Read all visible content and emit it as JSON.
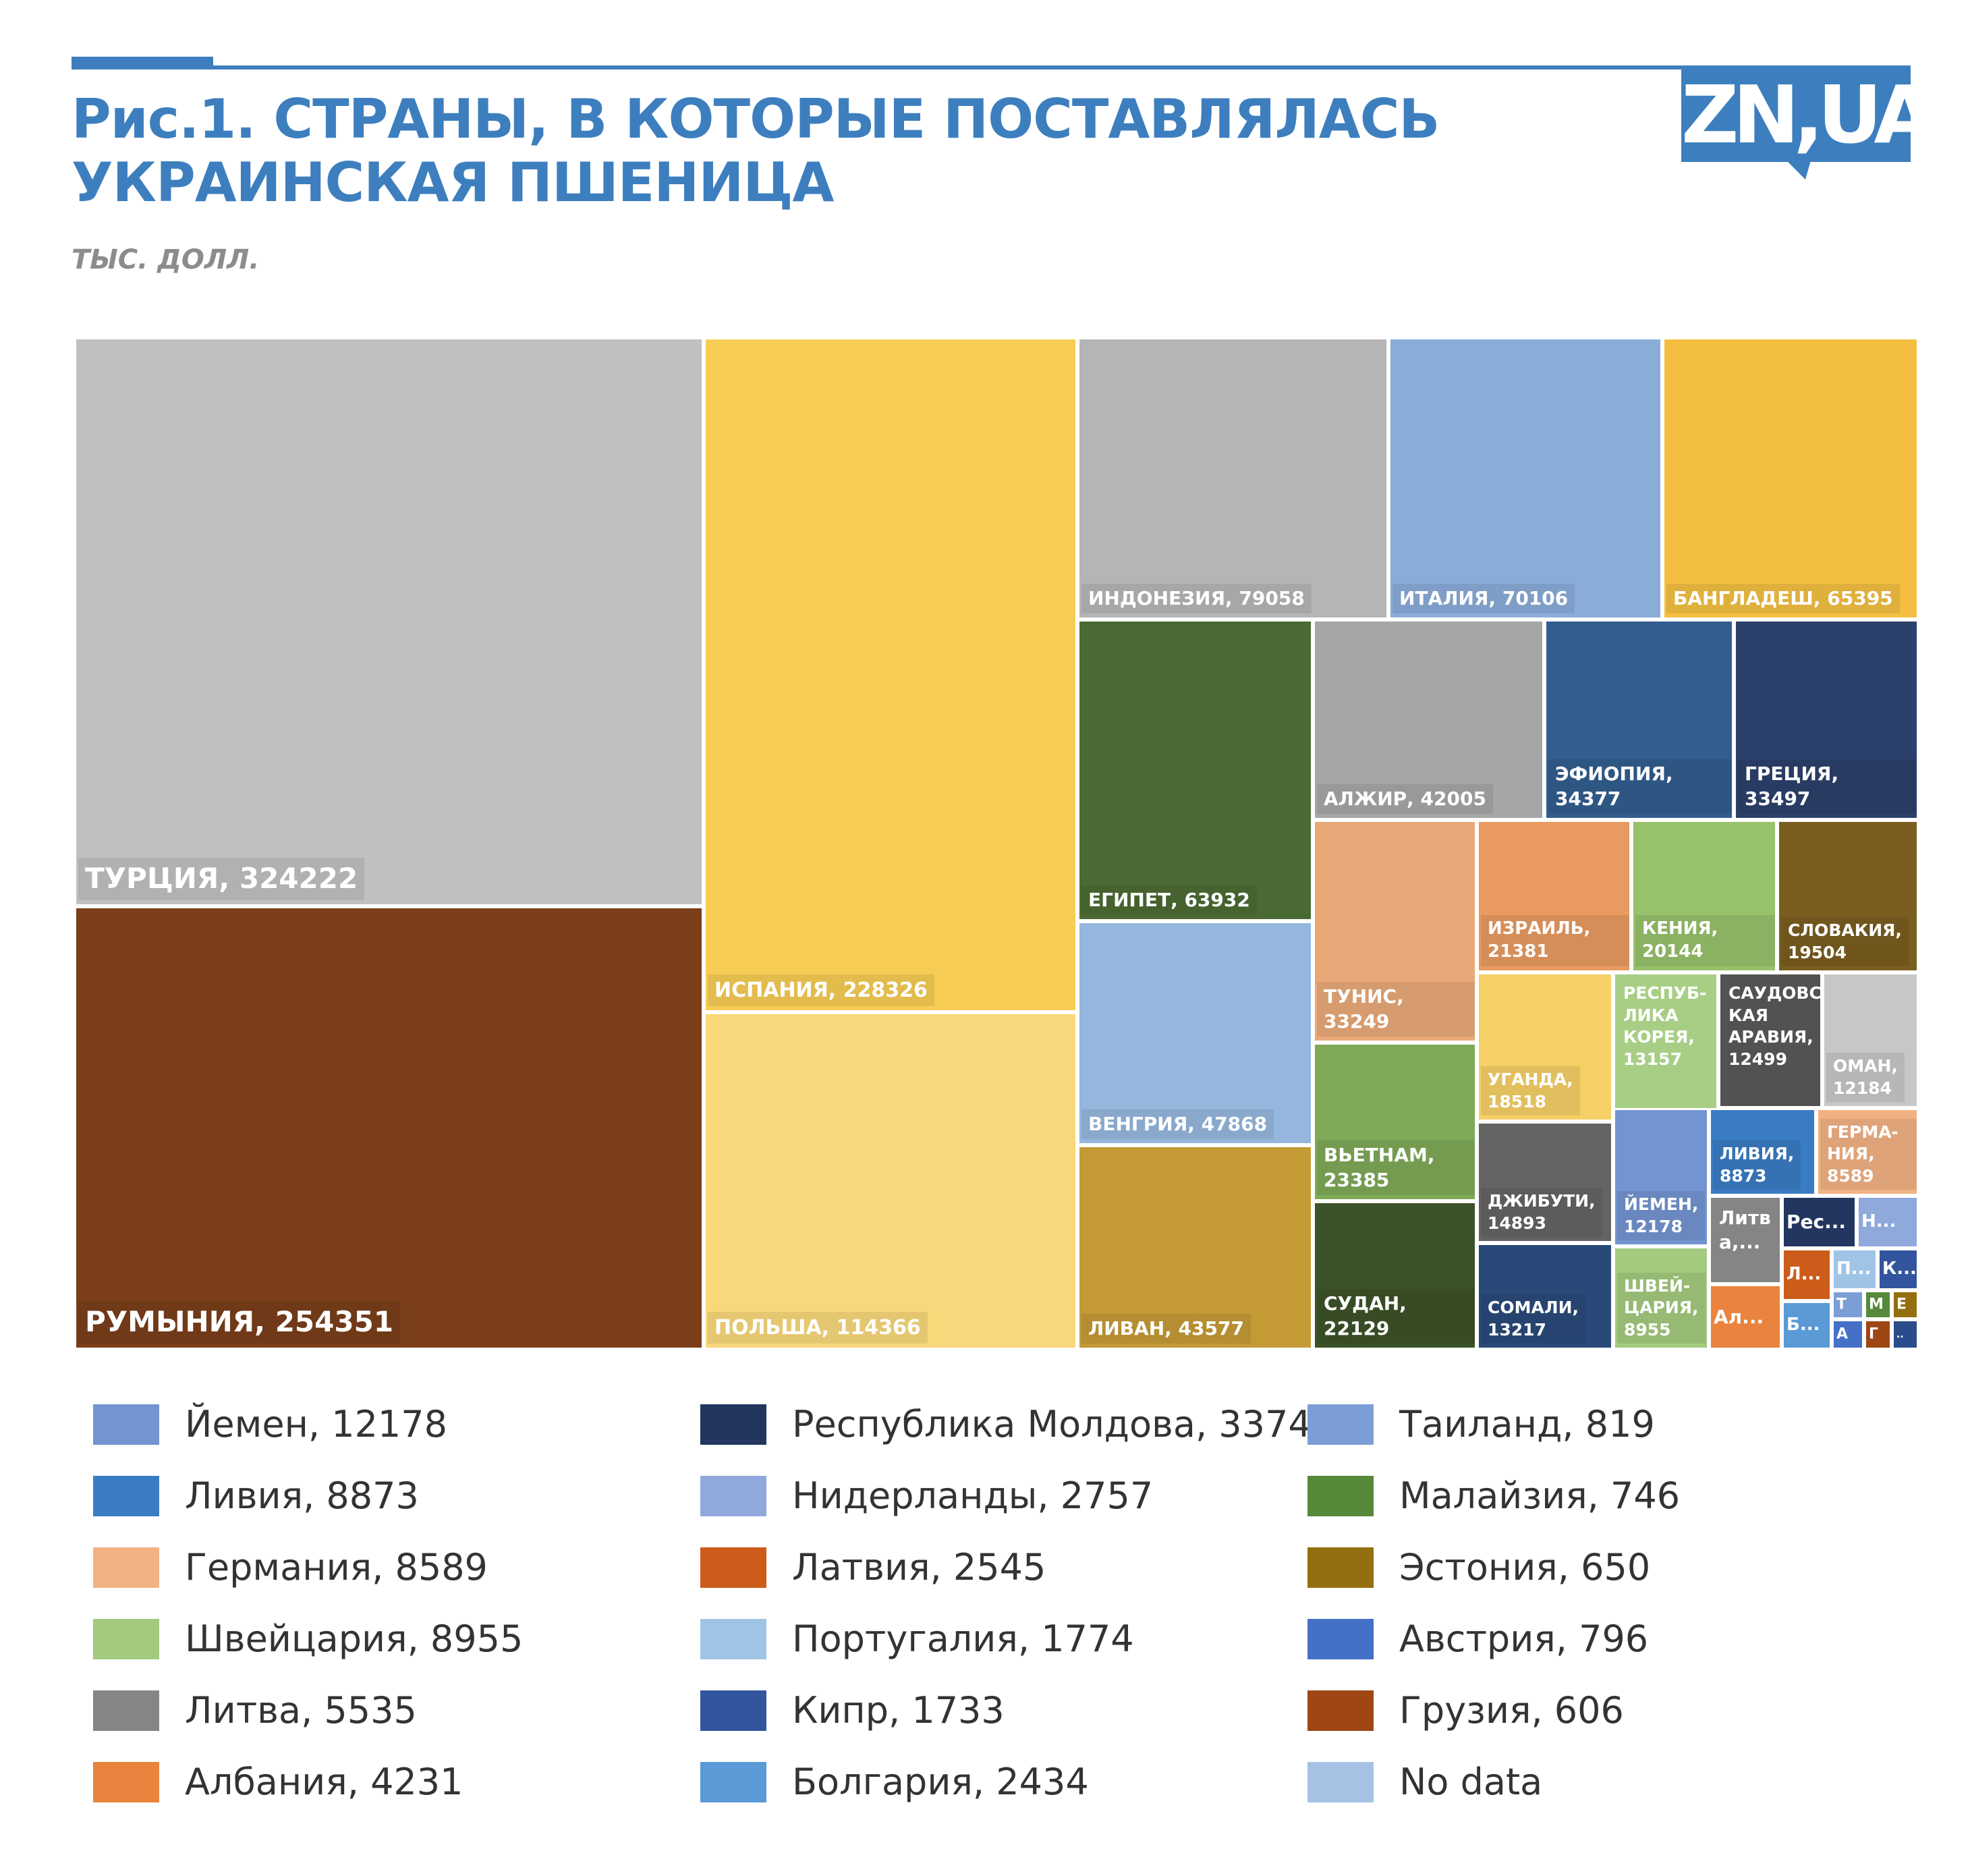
{
  "header": {
    "title_line1": "Рис.1. СТРАНЫ, В КОТОРЫЕ ПОСТАВЛЯЛАСЬ",
    "title_line2": "УКРАИНСКАЯ ПШЕНИЦА",
    "subtitle": "ТЫС. ДОЛЛ.",
    "logo_text": "ZN,UA",
    "accent_color": "#3d7fbe"
  },
  "chart_data": {
    "type": "treemap",
    "title": "Рис.1. СТРАНЫ, В КОТОРЫЕ ПОСТАВЛЯЛАСЬ УКРАИНСКАЯ ПШЕНИЦА",
    "unit": "ТЫС. ДОЛЛ.",
    "tiles": [
      {
        "label": "ТУРЦИЯ, 324222",
        "name": "Турция",
        "value": 324222,
        "color": "#c0c0c0"
      },
      {
        "label": "РУМЫНИЯ, 254351",
        "name": "Румыния",
        "value": 254351,
        "color": "#7a3e1a"
      },
      {
        "label": "ИСПАНИЯ, 228326",
        "name": "Испания",
        "value": 228326,
        "color": "#f7cc55"
      },
      {
        "label": "ПОЛЬША, 114366",
        "name": "Польша",
        "value": 114366,
        "color": "#f8d87a"
      },
      {
        "label": "ИНДОНЕЗИЯ, 79058",
        "name": "Индонезия",
        "value": 79058,
        "color": "#b5b5b5"
      },
      {
        "label": "ИТАЛИЯ, 70106",
        "name": "Италия",
        "value": 70106,
        "color": "#89acd8"
      },
      {
        "label": "БАНГЛАДЕШ, 65395",
        "name": "Бангладеш",
        "value": 65395,
        "color": "#f4bf41"
      },
      {
        "label": "ЕГИПЕТ, 63932",
        "name": "Египет",
        "value": 63932,
        "color": "#4b6a33"
      },
      {
        "label": "АЛЖИР, 42005",
        "name": "Алжир",
        "value": 42005,
        "color": "#a6a6a6"
      },
      {
        "label": "ЭФИОПИЯ, 34377",
        "name": "Эфиопия",
        "value": 34377,
        "color": "#325d8e"
      },
      {
        "label": "ГРЕЦИЯ, 33497",
        "name": "Греция",
        "value": 33497,
        "color": "#2b406b"
      },
      {
        "label": "ВЕНГРИЯ, 47868",
        "name": "Венгрия",
        "value": 47868,
        "color": "#95b7de"
      },
      {
        "label": "ТУНИС, 33249",
        "name": "Тунис",
        "value": 33249,
        "color": "#e9a878"
      },
      {
        "label": "ИЗРАИЛЬ, 21381",
        "name": "Израиль",
        "value": 21381,
        "color": "#e89a60"
      },
      {
        "label": "КЕНИЯ, 20144",
        "name": "Кения",
        "value": 20144,
        "color": "#97c16a"
      },
      {
        "label": "СЛОВАКИЯ,\n19504",
        "name": "Словакия",
        "value": 19504,
        "color": "#7a5e20"
      },
      {
        "label": "ЛИВАН, 43577",
        "name": "Ливан",
        "value": 43577,
        "color": "#c49a35"
      },
      {
        "label": "ВЬЕТНАМ, 23385",
        "name": "Вьетнам",
        "value": 23385,
        "color": "#7ea957"
      },
      {
        "label": "СУДАН, 22129",
        "name": "Судан",
        "value": 22129,
        "color": "#3c5228"
      },
      {
        "label": "УГАНДА,\n18518",
        "name": "Уганда",
        "value": 18518,
        "color": "#f6d066"
      },
      {
        "label": "РЕСПУБ-\nЛИКА\nКОРЕЯ,\n13157",
        "name": "Республика Корея",
        "value": 13157,
        "color": "#a8ce86"
      },
      {
        "label": "САУДОВС-\nКАЯ\nАРАВИЯ,\n12499",
        "name": "Саудовская Аравия",
        "value": 12499,
        "color": "#525252"
      },
      {
        "label": "ОМАН,\n12184",
        "name": "Оман",
        "value": 12184,
        "color": "#c7c7c7"
      },
      {
        "label": "ДЖИБУТИ,\n14893",
        "name": "Джибути",
        "value": 14893,
        "color": "#646464"
      },
      {
        "label": "СОМАЛИ,\n13217",
        "name": "Сомали",
        "value": 13217,
        "color": "#294a79"
      },
      {
        "label": "ЙЕМЕН,\n12178",
        "name": "Йемен",
        "value": 12178,
        "color": "#7394d0"
      },
      {
        "label": "ЛИВИЯ,\n8873",
        "name": "Ливия",
        "value": 8873,
        "color": "#3a7cc4"
      },
      {
        "label": "ГЕРМА-\nНИЯ, 8589",
        "name": "Германия",
        "value": 8589,
        "color": "#f2b183"
      },
      {
        "label": "ШВЕЙ-\nЦАРИЯ,\n8955",
        "name": "Швейцария",
        "value": 8955,
        "color": "#a3ca7e"
      },
      {
        "label": "Литв\nа,...",
        "name": "Литва",
        "value": 5535,
        "color": "#858585"
      },
      {
        "label": "Ал...",
        "name": "Албания",
        "value": 4231,
        "color": "#ea833e"
      },
      {
        "label": "Рес...",
        "name": "Республика Молдова",
        "value": 3374,
        "color": "#233660"
      },
      {
        "label": "Н...",
        "name": "Нидерланды",
        "value": 2757,
        "color": "#8fa9dc"
      },
      {
        "label": "Л...",
        "name": "Латвия",
        "value": 2545,
        "color": "#cb5c1a"
      },
      {
        "label": "П...",
        "name": "Португалия",
        "value": 1774,
        "color": "#a0c4e6"
      },
      {
        "label": "К...",
        "name": "Кипр",
        "value": 1733,
        "color": "#33559e"
      },
      {
        "label": "Б...",
        "name": "Болгария",
        "value": 2434,
        "color": "#5a9ad6"
      },
      {
        "label": "Т",
        "name": "Таиланд",
        "value": 819,
        "color": "#7c9ed6"
      },
      {
        "label": "М",
        "name": "Малайзия",
        "value": 746,
        "color": "#56893a"
      },
      {
        "label": "Е",
        "name": "Эстония",
        "value": 650,
        "color": "#946f0f"
      },
      {
        "label": "А",
        "name": "Австрия",
        "value": 796,
        "color": "#4470c8"
      },
      {
        "label": "Г",
        "name": "Грузия",
        "value": 606,
        "color": "#9e4614"
      },
      {
        "label": "..",
        "name": "No data",
        "value": null,
        "color": "#2b4c8a"
      }
    ],
    "legend": [
      {
        "label": "Йемен, 12178",
        "color": "#7394d0"
      },
      {
        "label": "Ливия, 8873",
        "color": "#3a7cc4"
      },
      {
        "label": "Германия, 8589",
        "color": "#f2b183"
      },
      {
        "label": "Швейцария, 8955",
        "color": "#a3ca7e"
      },
      {
        "label": "Литва, 5535",
        "color": "#858585"
      },
      {
        "label": "Албания, 4231",
        "color": "#ea833e"
      },
      {
        "label": "Республика Молдова, 3374",
        "color": "#233660"
      },
      {
        "label": "Нидерланды, 2757",
        "color": "#8fa9dc"
      },
      {
        "label": "Латвия, 2545",
        "color": "#cb5c1a"
      },
      {
        "label": "Португалия, 1774",
        "color": "#a0c4e6"
      },
      {
        "label": "Кипр, 1733",
        "color": "#33559e"
      },
      {
        "label": "Болгария, 2434",
        "color": "#5a9ad6"
      },
      {
        "label": "Таиланд, 819",
        "color": "#7c9ed6"
      },
      {
        "label": "Малайзия, 746",
        "color": "#56893a"
      },
      {
        "label": "Эстония, 650",
        "color": "#946f0f"
      },
      {
        "label": "Австрия, 796",
        "color": "#4470c8"
      },
      {
        "label": "Грузия, 606",
        "color": "#9e4614"
      },
      {
        "label": "No data",
        "color": "#a5c2e4"
      }
    ]
  }
}
